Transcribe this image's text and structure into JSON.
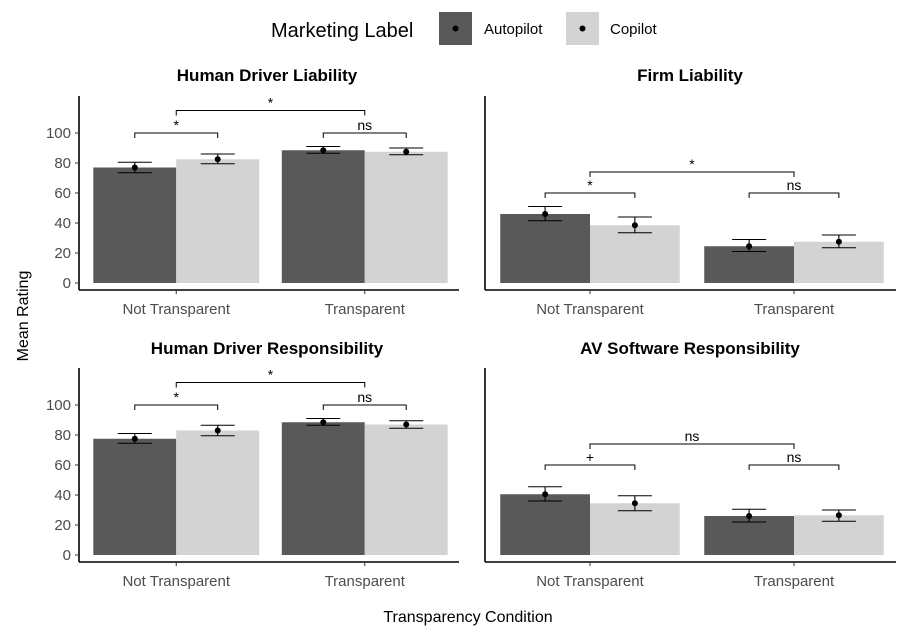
{
  "legend": {
    "title": "Marketing Label",
    "items": [
      {
        "label": "Autopilot",
        "color": "#595959"
      },
      {
        "label": "Copilot",
        "color": "#d3d3d3"
      }
    ]
  },
  "axes": {
    "xlabel": "Transparency Condition",
    "ylabel": "Mean Rating"
  },
  "chart_data": [
    {
      "type": "bar",
      "title": "Human Driver Liability",
      "categories": [
        "Not Transparent",
        "Transparent"
      ],
      "ylim": [
        0,
        110
      ],
      "yticks": [
        0,
        20,
        40,
        60,
        80,
        100
      ],
      "show_y_axis": true,
      "series": [
        {
          "name": "Autopilot",
          "values": [
            77,
            88.5
          ],
          "err_low": [
            73.5,
            86.5
          ],
          "err_high": [
            80.5,
            91
          ]
        },
        {
          "name": "Copilot",
          "values": [
            82.5,
            87.5
          ],
          "err_low": [
            79.5,
            85.5
          ],
          "err_high": [
            86,
            90
          ]
        }
      ],
      "annotations": [
        {
          "label": "*",
          "from": "Not Transparent",
          "to": "Transparent",
          "y": 115
        },
        {
          "label": "*",
          "within": "Not Transparent",
          "y": 100
        },
        {
          "label": "ns",
          "within": "Transparent",
          "y": 100
        }
      ]
    },
    {
      "type": "bar",
      "title": "Firm Liability",
      "categories": [
        "Not Transparent",
        "Transparent"
      ],
      "ylim": [
        0,
        110
      ],
      "yticks": [
        0,
        20,
        40,
        60,
        80,
        100
      ],
      "show_y_axis": false,
      "series": [
        {
          "name": "Autopilot",
          "values": [
            46,
            24.5
          ],
          "err_low": [
            41.5,
            21
          ],
          "err_high": [
            51,
            29
          ]
        },
        {
          "name": "Copilot",
          "values": [
            38.5,
            27.5
          ],
          "err_low": [
            33.5,
            23.5
          ],
          "err_high": [
            44,
            32
          ]
        }
      ],
      "annotations": [
        {
          "label": "*",
          "from": "Not Transparent",
          "to": "Transparent",
          "y": 74
        },
        {
          "label": "*",
          "within": "Not Transparent",
          "y": 60
        },
        {
          "label": "ns",
          "within": "Transparent",
          "y": 60
        }
      ]
    },
    {
      "type": "bar",
      "title": "Human Driver Responsibility",
      "categories": [
        "Not Transparent",
        "Transparent"
      ],
      "ylim": [
        0,
        110
      ],
      "yticks": [
        0,
        20,
        40,
        60,
        80,
        100
      ],
      "show_y_axis": true,
      "series": [
        {
          "name": "Autopilot",
          "values": [
            77.5,
            88.5
          ],
          "err_low": [
            74.5,
            86.5
          ],
          "err_high": [
            81,
            91
          ]
        },
        {
          "name": "Copilot",
          "values": [
            83,
            87
          ],
          "err_low": [
            79.5,
            84.5
          ],
          "err_high": [
            86.5,
            89.5
          ]
        }
      ],
      "annotations": [
        {
          "label": "*",
          "from": "Not Transparent",
          "to": "Transparent",
          "y": 115
        },
        {
          "label": "*",
          "within": "Not Transparent",
          "y": 100
        },
        {
          "label": "ns",
          "within": "Transparent",
          "y": 100
        }
      ]
    },
    {
      "type": "bar",
      "title": "AV Software Responsibility",
      "categories": [
        "Not Transparent",
        "Transparent"
      ],
      "ylim": [
        0,
        110
      ],
      "yticks": [
        0,
        20,
        40,
        60,
        80,
        100
      ],
      "show_y_axis": false,
      "series": [
        {
          "name": "Autopilot",
          "values": [
            40.5,
            26
          ],
          "err_low": [
            36,
            22
          ],
          "err_high": [
            45.5,
            30.5
          ]
        },
        {
          "name": "Copilot",
          "values": [
            34.5,
            26.5
          ],
          "err_low": [
            29.5,
            22.5
          ],
          "err_high": [
            39.5,
            30
          ]
        }
      ],
      "annotations": [
        {
          "label": "ns",
          "from": "Not Transparent",
          "to": "Transparent",
          "y": 74
        },
        {
          "label": "+",
          "within": "Not Transparent",
          "y": 60
        },
        {
          "label": "ns",
          "within": "Transparent",
          "y": 60
        }
      ]
    }
  ]
}
